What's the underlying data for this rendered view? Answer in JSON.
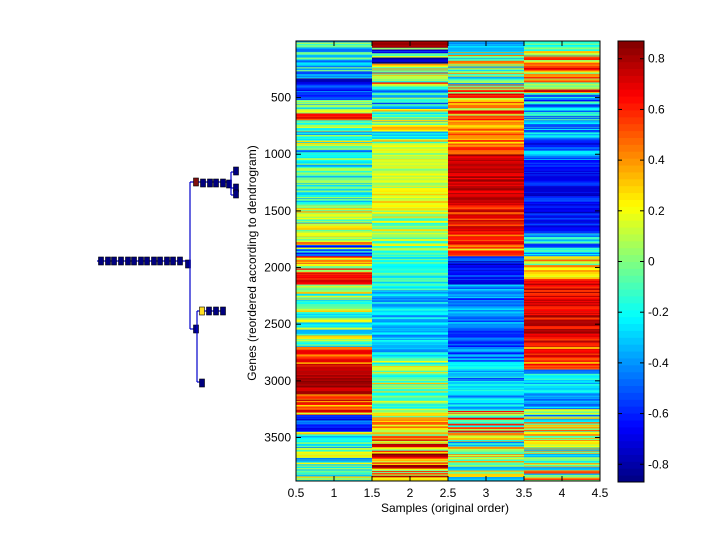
{
  "chart_data": {
    "type": "heatmap",
    "title": "",
    "xlabel": "Samples (original order)",
    "ylabel": "Genes (reordered according to dendrogram)",
    "colormap": "jet",
    "xlim": [
      0.5,
      4.5
    ],
    "ylim": [
      0.5,
      3884
    ],
    "y_reversed": true,
    "x_ticks": [
      "0.5",
      "1",
      "1.5",
      "2",
      "2.5",
      "3",
      "3.5",
      "4",
      "4.5"
    ],
    "x_tick_values": [
      0.5,
      1,
      1.5,
      2,
      2.5,
      3,
      3.5,
      4,
      4.5
    ],
    "y_ticks": [
      "500",
      "1000",
      "1500",
      "2000",
      "2500",
      "3000",
      "3500"
    ],
    "y_tick_values": [
      500,
      1000,
      1500,
      2000,
      2500,
      3000,
      3500
    ],
    "colorbar": {
      "range": [
        -0.87,
        0.87
      ],
      "ticks": [
        "0.8",
        "0.6",
        "0.4",
        "0.2",
        "0",
        "-0.2",
        "-0.4",
        "-0.6",
        "-0.8"
      ],
      "tick_values": [
        0.8,
        0.6,
        0.4,
        0.2,
        0,
        -0.2,
        -0.4,
        -0.6,
        -0.8
      ]
    },
    "n_genes": 3884,
    "samples": [
      1,
      2,
      3,
      4
    ],
    "columns": [
      {
        "sample": 1,
        "segments": [
          [
            0,
            330,
            -0.25,
            0.35
          ],
          [
            330,
            520,
            -0.6,
            0.2
          ],
          [
            520,
            640,
            -0.2,
            0.4
          ],
          [
            640,
            700,
            0.6,
            0.15
          ],
          [
            700,
            1000,
            -0.1,
            0.4
          ],
          [
            1000,
            1450,
            -0.15,
            0.25
          ],
          [
            1450,
            1650,
            0.05,
            0.35
          ],
          [
            1650,
            1800,
            0.2,
            0.35
          ],
          [
            1800,
            1900,
            -0.2,
            0.5
          ],
          [
            1900,
            2050,
            0.3,
            0.4
          ],
          [
            2050,
            2150,
            0.65,
            0.1
          ],
          [
            2150,
            2700,
            0.0,
            0.35
          ],
          [
            2700,
            2870,
            0.55,
            0.2
          ],
          [
            2870,
            3120,
            0.78,
            0.08
          ],
          [
            3120,
            3300,
            0.45,
            0.35
          ],
          [
            3300,
            3450,
            -0.55,
            0.2
          ],
          [
            3450,
            3884,
            -0.05,
            0.4
          ]
        ]
      },
      {
        "sample": 2,
        "segments": [
          [
            0,
            60,
            0.82,
            0.03
          ],
          [
            60,
            200,
            -0.3,
            0.6
          ],
          [
            200,
            400,
            0.2,
            0.5
          ],
          [
            400,
            600,
            -0.25,
            0.3
          ],
          [
            600,
            900,
            0.0,
            0.4
          ],
          [
            900,
            1300,
            0.12,
            0.15
          ],
          [
            1300,
            1500,
            0.2,
            0.2
          ],
          [
            1500,
            1850,
            0.05,
            0.25
          ],
          [
            1850,
            2200,
            -0.15,
            0.15
          ],
          [
            2200,
            2800,
            -0.3,
            0.15
          ],
          [
            2800,
            3000,
            0.0,
            0.3
          ],
          [
            3000,
            3300,
            0.05,
            0.3
          ],
          [
            3300,
            3520,
            0.3,
            0.35
          ],
          [
            3520,
            3884,
            0.4,
            0.6
          ]
        ]
      },
      {
        "sample": 3,
        "segments": [
          [
            0,
            100,
            -0.3,
            0.15
          ],
          [
            100,
            400,
            0.1,
            0.5
          ],
          [
            400,
            700,
            0.35,
            0.35
          ],
          [
            700,
            1000,
            0.45,
            0.2
          ],
          [
            1000,
            1450,
            0.75,
            0.1
          ],
          [
            1450,
            1800,
            0.6,
            0.2
          ],
          [
            1800,
            1900,
            0.4,
            0.3
          ],
          [
            1900,
            2150,
            -0.6,
            0.2
          ],
          [
            2150,
            2800,
            -0.45,
            0.2
          ],
          [
            2800,
            3250,
            -0.35,
            0.2
          ],
          [
            3250,
            3450,
            0.2,
            0.5
          ],
          [
            3450,
            3600,
            0.0,
            0.5
          ],
          [
            3600,
            3884,
            0.05,
            0.45
          ]
        ]
      },
      {
        "sample": 4,
        "segments": [
          [
            0,
            130,
            0.05,
            0.3
          ],
          [
            130,
            460,
            0.35,
            0.4
          ],
          [
            460,
            700,
            -0.4,
            0.35
          ],
          [
            700,
            1050,
            -0.45,
            0.3
          ],
          [
            1050,
            1300,
            -0.6,
            0.15
          ],
          [
            1300,
            1700,
            -0.65,
            0.15
          ],
          [
            1700,
            1900,
            -0.35,
            0.3
          ],
          [
            1900,
            2100,
            0.2,
            0.3
          ],
          [
            2100,
            2700,
            0.7,
            0.15
          ],
          [
            2700,
            2900,
            0.5,
            0.25
          ],
          [
            2900,
            3250,
            -0.3,
            0.2
          ],
          [
            3250,
            3550,
            0.0,
            0.5
          ],
          [
            3550,
            3884,
            0.1,
            0.5
          ]
        ]
      }
    ],
    "dendrogram": {
      "orientation": "left",
      "node_colors": {
        "default": "#00007f",
        "highlight_red": "#7f1010",
        "highlight_yellow": "#ffdd22"
      },
      "line_color": "#0000cc"
    }
  }
}
